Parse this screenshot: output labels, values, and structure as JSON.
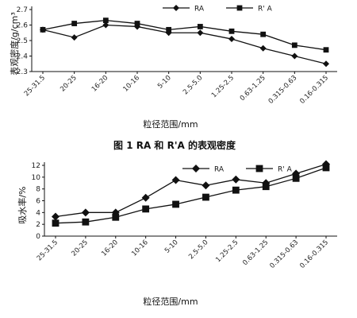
{
  "figure1": {
    "caption": "图 1   RA 和 R'A 的表观密度",
    "chart_data": {
      "type": "line",
      "title": "",
      "ylabel": "表观密度/g/cm³",
      "xlabel": "粒径范围/mm",
      "categories": [
        "25-31.5",
        "20-25",
        "16-20",
        "10-16",
        "5-10",
        "2.5-5.0",
        "1.25-2.5",
        "0.63-1.25",
        "0.315-0.63",
        "0.16-0.315"
      ],
      "ylim": [
        2.3,
        2.7
      ],
      "yticks": [
        "2.7",
        "2.6",
        "2.5",
        "2.4",
        "2.3"
      ],
      "legend_position": "top-center",
      "series": [
        {
          "name": "RA",
          "marker": "diamond",
          "values": [
            2.57,
            2.52,
            2.6,
            2.59,
            2.55,
            2.55,
            2.51,
            2.45,
            2.4,
            2.35
          ]
        },
        {
          "name": "R' A",
          "marker": "square",
          "values": [
            2.57,
            2.61,
            2.63,
            2.61,
            2.57,
            2.59,
            2.56,
            2.54,
            2.47,
            2.44
          ]
        }
      ]
    }
  },
  "figure2": {
    "caption": "",
    "chart_data": {
      "type": "line",
      "title": "",
      "ylabel": "吸水率/%",
      "xlabel": "粒径范围/mm",
      "categories": [
        "25-31.5",
        "20-25",
        "16-20",
        "10-16",
        "5-10",
        "2.5-5.0",
        "1.25-2.5",
        "0.63-1.25",
        "0.315-0.63",
        "0.16-0.315"
      ],
      "ylim": [
        0,
        12
      ],
      "yticks": [
        "12",
        "10",
        "8",
        "6",
        "4",
        "2",
        "0"
      ],
      "legend_position": "top-center",
      "series": [
        {
          "name": "RA",
          "marker": "diamond",
          "values": [
            3.3,
            4.0,
            4.0,
            6.5,
            9.5,
            8.6,
            9.6,
            9.0,
            10.6,
            12.2
          ]
        },
        {
          "name": "R' A",
          "marker": "square",
          "values": [
            2.2,
            2.4,
            3.2,
            4.6,
            5.4,
            6.6,
            7.8,
            8.4,
            9.8,
            11.6
          ]
        }
      ]
    }
  }
}
